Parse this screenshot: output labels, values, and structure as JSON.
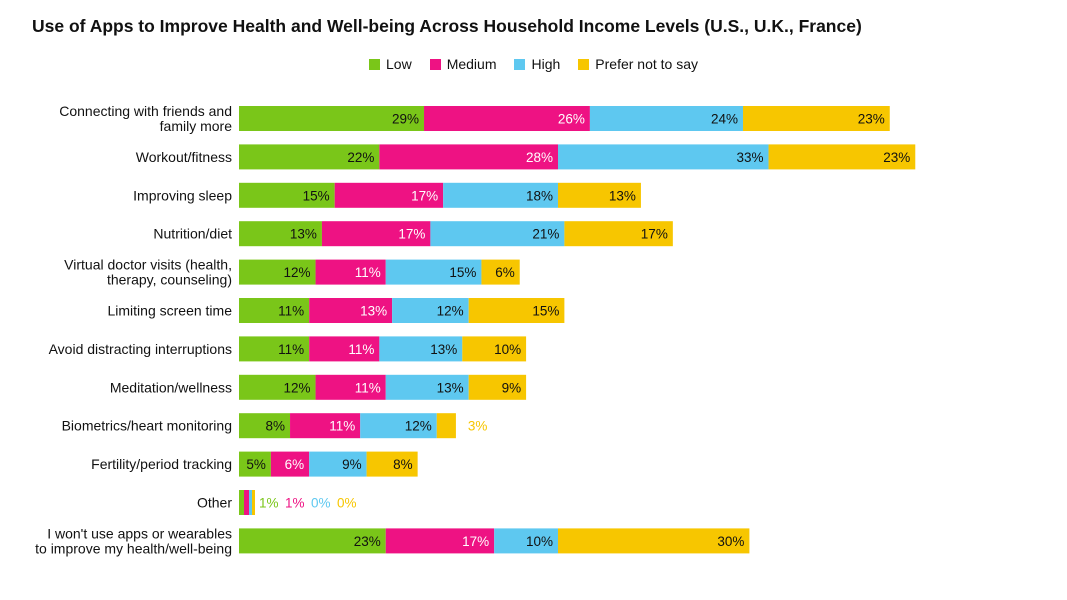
{
  "chart_data": {
    "type": "bar",
    "orientation": "horizontal",
    "stacked": true,
    "title": "Use of Apps to Improve Health and Well-being Across Household Income Levels (U.S., U.K., France)",
    "categories": [
      [
        "Connecting with friends and",
        "family more"
      ],
      [
        "Workout/fitness"
      ],
      [
        "Improving sleep"
      ],
      [
        "Nutrition/diet"
      ],
      [
        "Virtual doctor visits (health,",
        "therapy, counseling)"
      ],
      [
        "Limiting screen time"
      ],
      [
        "Avoid distracting interruptions"
      ],
      [
        "Meditation/wellness"
      ],
      [
        "Biometrics/heart monitoring"
      ],
      [
        "Fertility/period tracking"
      ],
      [
        "Other"
      ],
      [
        "I won't use apps or wearables",
        "to improve my health/well-being"
      ]
    ],
    "series": [
      {
        "name": "Low",
        "color": "#7ac619",
        "values": [
          29,
          22,
          15,
          13,
          12,
          11,
          11,
          12,
          8,
          5,
          1,
          23
        ]
      },
      {
        "name": "Medium",
        "color": "#ee1283",
        "values": [
          26,
          28,
          17,
          17,
          11,
          13,
          11,
          11,
          11,
          6,
          1,
          17
        ]
      },
      {
        "name": "High",
        "color": "#5ec8f0",
        "values": [
          24,
          33,
          18,
          21,
          15,
          12,
          13,
          13,
          12,
          9,
          0,
          10
        ]
      },
      {
        "name": "Prefer not to say",
        "color": "#f7c600",
        "values": [
          23,
          23,
          13,
          17,
          6,
          15,
          10,
          9,
          3,
          8,
          0,
          30
        ]
      }
    ],
    "value_suffix": "%",
    "legend_position": "top-center"
  }
}
